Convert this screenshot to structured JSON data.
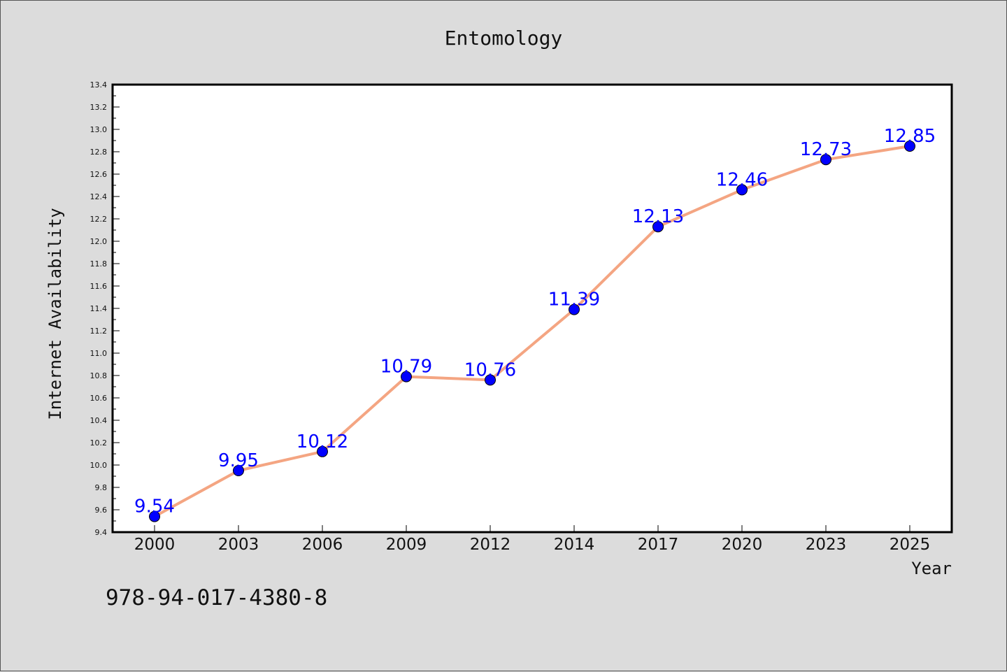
{
  "chart_data": {
    "type": "line",
    "title": "Entomology",
    "xlabel": "Year",
    "ylabel": "Internet Availability",
    "categories": [
      "2000",
      "2003",
      "2006",
      "2009",
      "2012",
      "2014",
      "2017",
      "2020",
      "2023",
      "2025"
    ],
    "series": [
      {
        "values": [
          9.54,
          9.95,
          10.12,
          10.79,
          10.76,
          11.39,
          12.13,
          12.46,
          12.73,
          12.85
        ],
        "line_color": "#f4a582",
        "marker_color": "#0000ff"
      }
    ],
    "data_labels": [
      "9.54",
      "9.95",
      "10.12",
      "10.79",
      "10.76",
      "11.39",
      "12.13",
      "12.46",
      "12.73",
      "12.85"
    ],
    "ylim": [
      9.4,
      13.4
    ],
    "yticks": [
      "9.4",
      "9.6",
      "9.8",
      "10.0",
      "10.2",
      "10.4",
      "10.6",
      "10.8",
      "11.0",
      "11.2",
      "11.4",
      "11.6",
      "11.8",
      "12.0",
      "12.2",
      "12.4",
      "12.6",
      "12.8",
      "13.0",
      "13.2",
      "13.4"
    ],
    "grid": false,
    "legend": "none"
  },
  "footnote": "978-94-017-4380-8",
  "colors": {
    "background": "#dcdcdc",
    "plot_background": "#ffffff",
    "line": "#f4a582",
    "marker": "#0000ff",
    "label": "#0000ff"
  }
}
